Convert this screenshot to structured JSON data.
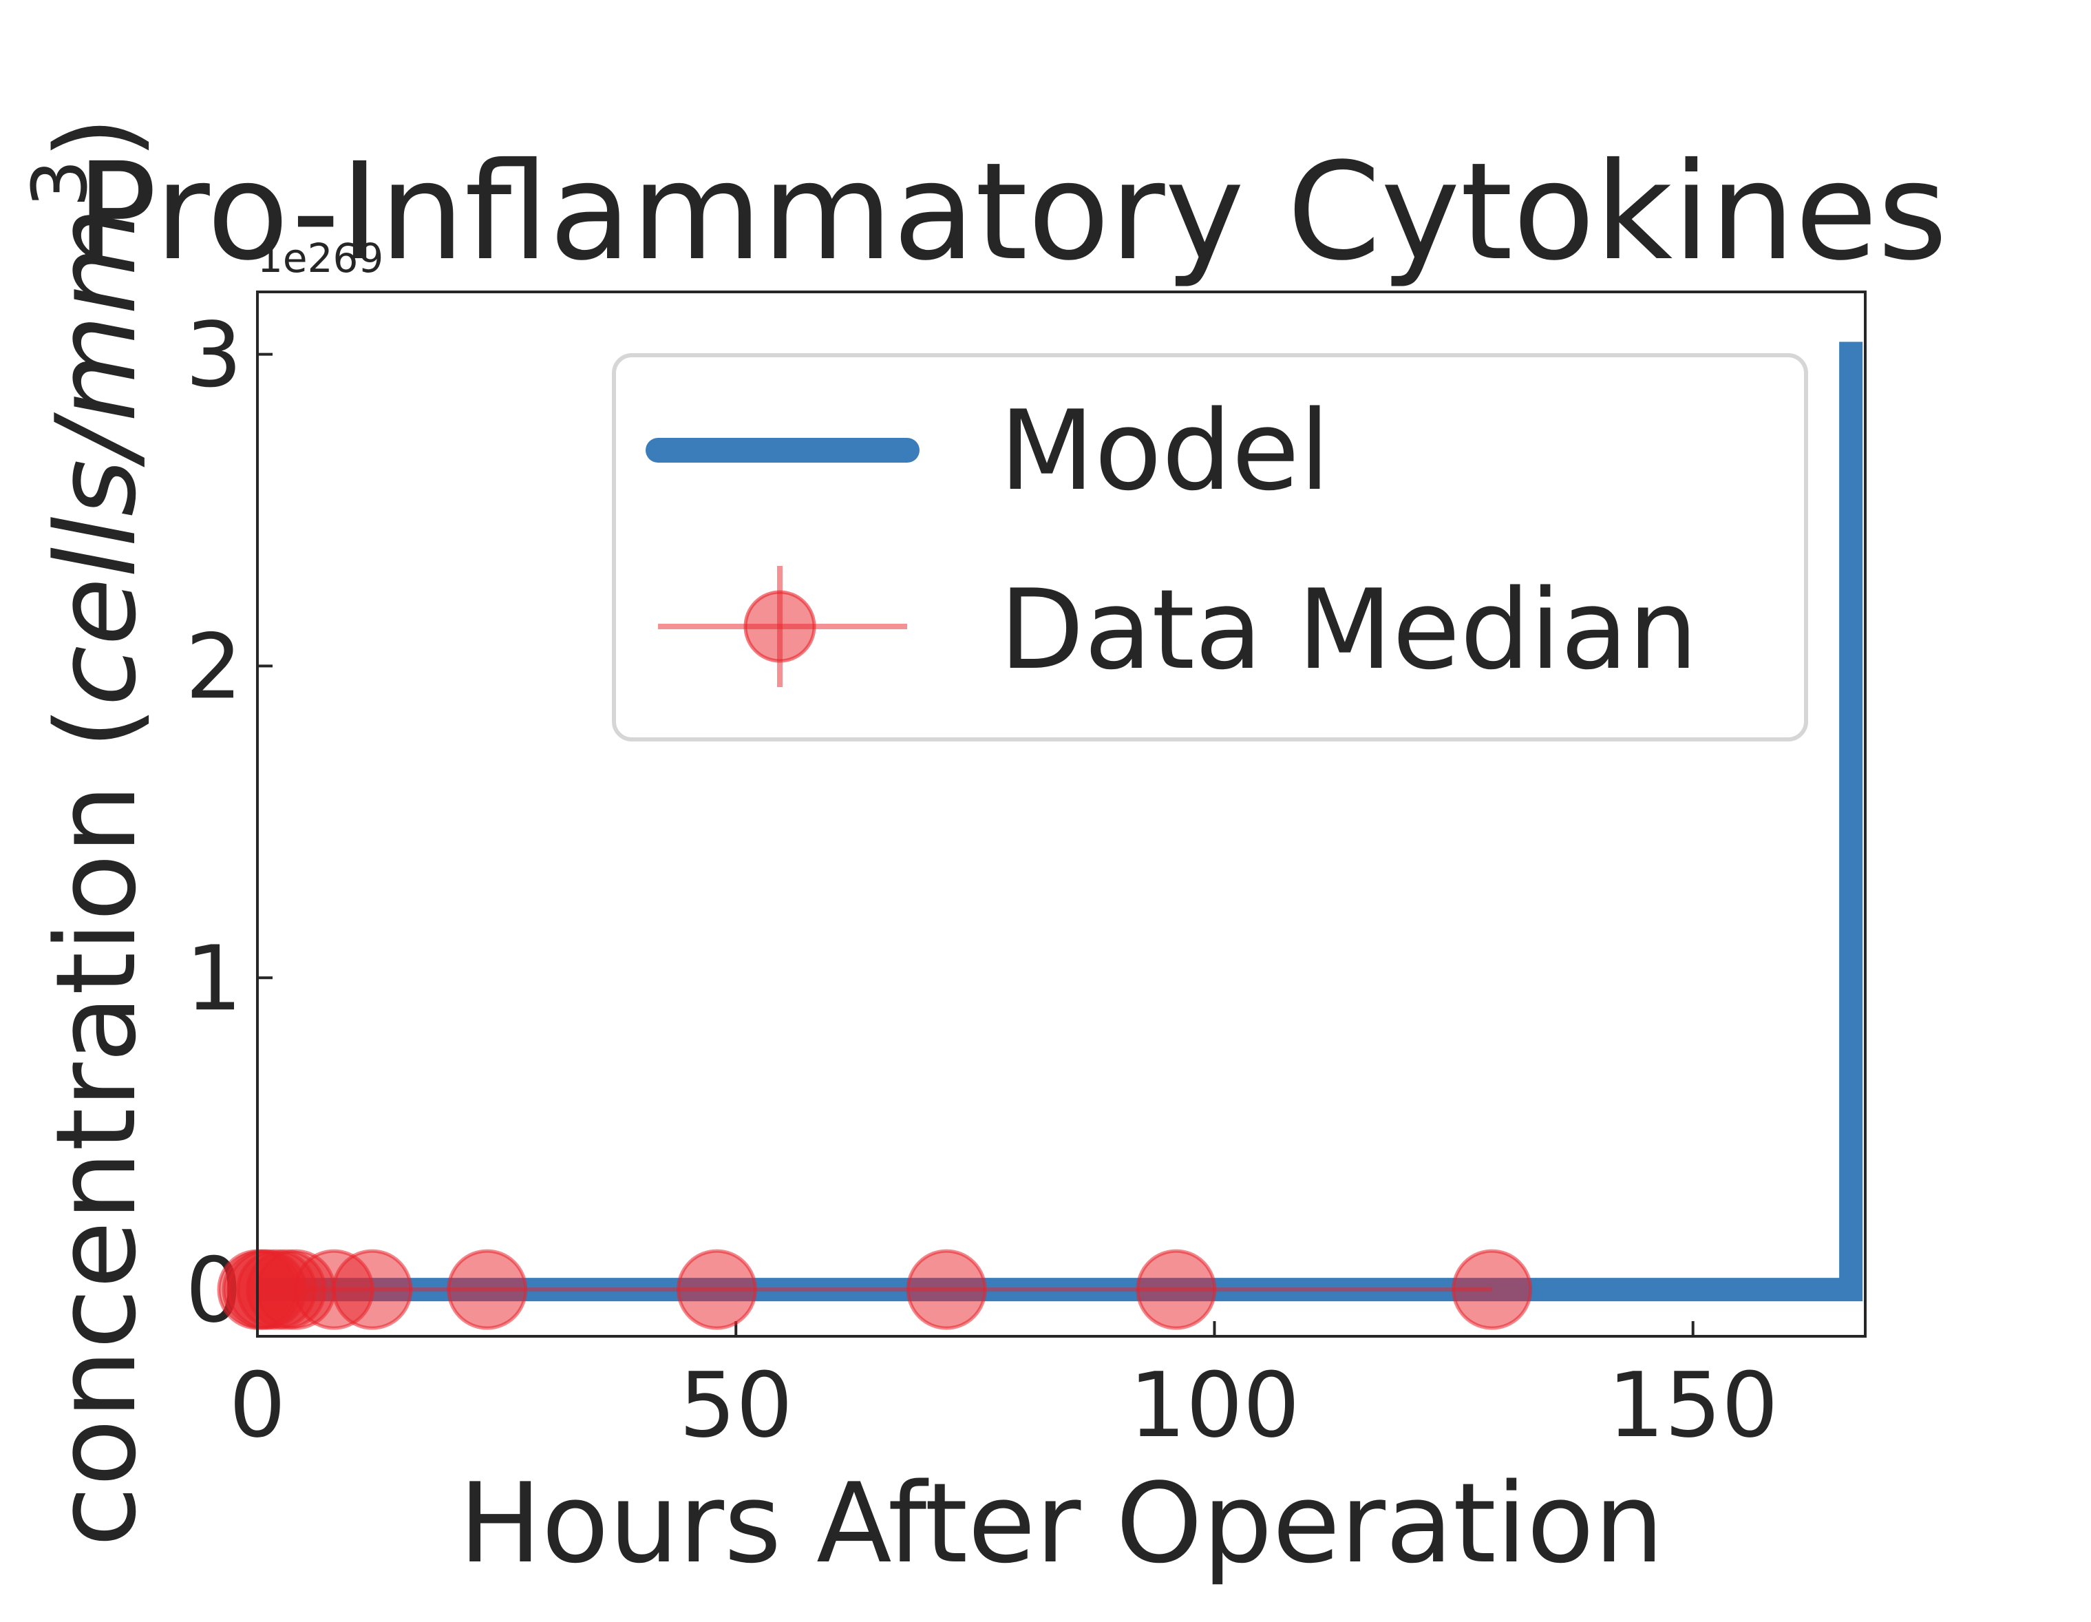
{
  "chart_data": {
    "type": "line",
    "title": "Pro-Inflammatory Cytokines",
    "xlabel": "Hours After Operation",
    "ylabel_prefix": "concentration (",
    "ylabel_unit": "cells/mm",
    "ylabel_sup": "3",
    "ylabel_suffix": ")",
    "y_offset_label": "1e269",
    "xlim": [
      0,
      168
    ],
    "ylim": [
      -0.15,
      3.2
    ],
    "xticks": [
      0,
      50,
      100,
      150
    ],
    "yticks": [
      0,
      1,
      2,
      3
    ],
    "grid": false,
    "legend_position": "upper-right",
    "colors": {
      "model": "#3a7dba",
      "data": "#e8232a"
    },
    "series": [
      {
        "name": "Model",
        "style": "line",
        "x": [
          0,
          166.5,
          166.5
        ],
        "y": [
          0,
          0,
          3.04
        ]
      },
      {
        "name": "Data Median",
        "style": "markers",
        "x": [
          0,
          0.5,
          1,
          2,
          3,
          4,
          8,
          12,
          24,
          48,
          72,
          96,
          129
        ],
        "y": [
          0,
          0,
          0,
          0,
          0,
          0,
          0,
          0,
          0,
          0,
          0,
          0,
          0
        ]
      }
    ]
  }
}
